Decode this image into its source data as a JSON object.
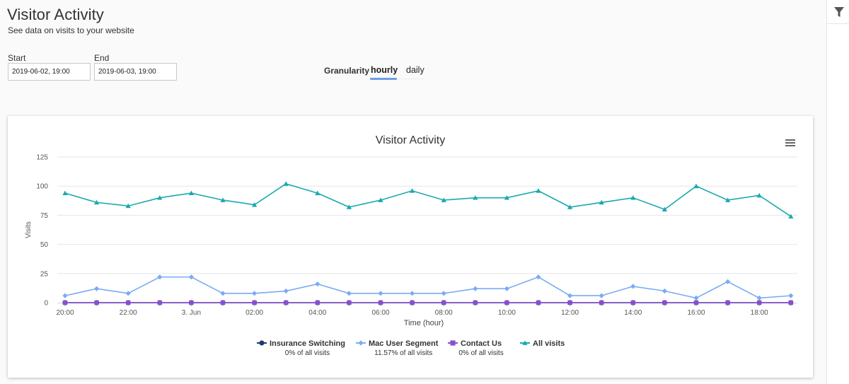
{
  "header": {
    "title": "Visitor Activity",
    "subtitle": "See data on visits to your website"
  },
  "filters": {
    "start_label": "Start",
    "start_value": "2019-06-02, 19:00",
    "end_label": "End",
    "end_value": "2019-06-03, 19:00",
    "granularity_label": "Granularity",
    "granularity_options": [
      "hourly",
      "daily"
    ],
    "granularity_selected": "hourly"
  },
  "toolbar": {
    "filter_icon": "filter-icon"
  },
  "chart_data": {
    "type": "line",
    "title": "Visitor Activity",
    "xlabel": "Time (hour)",
    "ylabel": "Visits",
    "ylim": [
      0,
      125
    ],
    "yticks": [
      "0",
      "25",
      "50",
      "75",
      "100",
      "125"
    ],
    "x": [
      "20:00",
      "21:00",
      "22:00",
      "23:00",
      "3. Jun",
      "01:00",
      "02:00",
      "03:00",
      "04:00",
      "05:00",
      "06:00",
      "07:00",
      "08:00",
      "09:00",
      "10:00",
      "11:00",
      "12:00",
      "13:00",
      "14:00",
      "15:00",
      "16:00",
      "17:00",
      "18:00",
      "19:00"
    ],
    "xtick_labels": [
      "20:00",
      "22:00",
      "3. Jun",
      "02:00",
      "04:00",
      "06:00",
      "08:00",
      "10:00",
      "12:00",
      "14:00",
      "16:00",
      "18:00"
    ],
    "grid": true,
    "legend_position": "bottom-center",
    "series": [
      {
        "name": "Insurance Switching",
        "subtitle": "0% of all visits",
        "color": "#1f3b6e",
        "marker": "circle",
        "values": [
          0,
          0,
          0,
          0,
          0,
          0,
          0,
          0,
          0,
          0,
          0,
          0,
          0,
          0,
          0,
          0,
          0,
          0,
          0,
          0,
          0,
          0,
          0,
          0
        ]
      },
      {
        "name": "Mac User Segment",
        "subtitle": "11.57% of all visits",
        "color": "#79acf2",
        "marker": "diamond",
        "values": [
          6,
          12,
          8,
          22,
          22,
          8,
          8,
          10,
          16,
          8,
          8,
          8,
          8,
          12,
          12,
          22,
          6,
          6,
          14,
          10,
          4,
          18,
          4,
          6
        ]
      },
      {
        "name": "Contact Us",
        "subtitle": "0% of all visits",
        "color": "#8a4fcf",
        "marker": "square",
        "values": [
          0,
          0,
          0,
          0,
          0,
          0,
          0,
          0,
          0,
          0,
          0,
          0,
          0,
          0,
          0,
          0,
          0,
          0,
          0,
          0,
          0,
          0,
          0,
          0
        ]
      },
      {
        "name": "All visits",
        "subtitle": "",
        "color": "#1aa9ad",
        "marker": "triangle",
        "values": [
          94,
          86,
          83,
          90,
          94,
          88,
          84,
          102,
          94,
          82,
          88,
          96,
          88,
          90,
          90,
          96,
          82,
          86,
          90,
          80,
          100,
          88,
          92,
          74
        ]
      }
    ]
  }
}
